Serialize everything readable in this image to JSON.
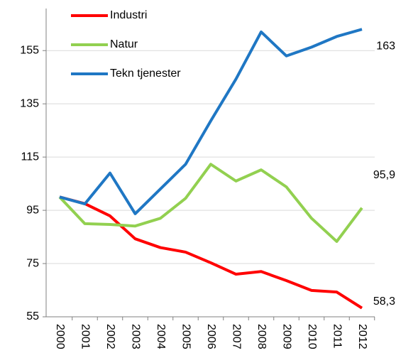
{
  "chart_data": {
    "type": "line",
    "categories": [
      "2000",
      "2001",
      "2002",
      "2003",
      "2004",
      "2005",
      "2006",
      "2007",
      "2008",
      "2009",
      "2010",
      "2011",
      "2012"
    ],
    "series": [
      {
        "name": "Industri",
        "color": "#ff0000",
        "values": [
          100,
          97.5,
          92.9,
          84.3,
          81,
          79.3,
          75.3,
          71,
          72,
          68.6,
          64.9,
          64.3,
          58.3
        ],
        "value_labels": [
          null,
          null,
          null,
          null,
          null,
          null,
          null,
          null,
          null,
          null,
          null,
          null,
          "58,3"
        ]
      },
      {
        "name": "Natur",
        "color": "#92d050",
        "values": [
          100,
          90,
          89.7,
          89.1,
          92,
          99.5,
          112.3,
          106,
          110.2,
          103.8,
          92,
          83.3,
          95.9
        ],
        "value_labels": [
          null,
          null,
          null,
          null,
          null,
          null,
          null,
          null,
          null,
          null,
          null,
          null,
          "95,9"
        ]
      },
      {
        "name": "Tekn tjenester",
        "color": "#1f77c4",
        "values": [
          100,
          97.4,
          109,
          93.7,
          103,
          112.3,
          128.6,
          144.3,
          162,
          153,
          156.3,
          160.3,
          163
        ],
        "value_labels": [
          null,
          null,
          null,
          null,
          null,
          null,
          null,
          null,
          null,
          null,
          null,
          null,
          "163"
        ]
      }
    ],
    "ylim": [
      55,
      170
    ],
    "yticks": [
      55,
      75,
      95,
      115,
      135,
      155
    ],
    "grid": true,
    "legend": "upper left"
  }
}
